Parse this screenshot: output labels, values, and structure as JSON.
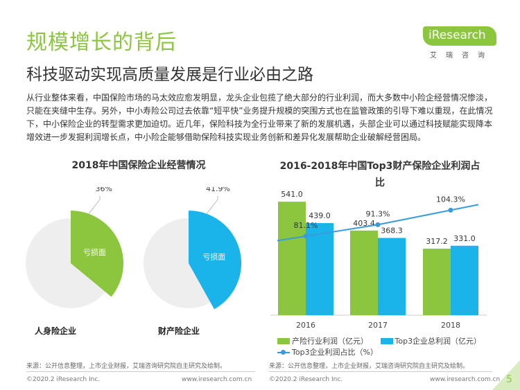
{
  "page": {
    "title": "规模增长的背后",
    "subtitle": "科技驱动实现高质量发展是行业必由之路",
    "intro": "从行业整体来看，中国保险市场的马太效应愈发明显，龙头企业包揽了绝大部分的行业利润，而大多数中小险企经营情况惨淡，只能在夹缝中生存。另外，中小寿险公司过去依靠“短平快”业务提升规模的突围方式也在监管政策的引导下难以重现，在此情况下，中小保险企业的转型需求更加迫切。近几年，保险科技为全行业带来了新的发展机遇，头部企业可以通过科技赋能实现降本增效进一步发掘利润增长点，中小险企能够借助保险科技实现业务创新和差异化发展帮助企业破解经营困局。",
    "page_number": "5"
  },
  "logo": {
    "text": "iResearch",
    "cn": "艾瑞咨询"
  },
  "colors": {
    "green": "#8cc63f",
    "blue": "#1ab4ea",
    "line": "#3a9bdc",
    "pie_bg": "#eeeeee"
  },
  "chart_data": [
    {
      "type": "pie",
      "title": "2018年中国保险企业经营情况",
      "charts": [
        {
          "name": "人身险企业",
          "slice_label": "亏损面",
          "value": 36,
          "value_label": "36%",
          "color": "#8cc63f"
        },
        {
          "name": "财产险企业",
          "slice_label": "亏损面",
          "value": 41.9,
          "value_label": "41.9%",
          "color": "#1ab4ea"
        }
      ]
    },
    {
      "type": "bar",
      "title": "2016-2018年中国Top3财产保险企业利润占比",
      "categories": [
        "2016",
        "2017",
        "2018"
      ],
      "series": [
        {
          "name": "产险行业利润（亿元）",
          "values": [
            541.0,
            403.4,
            317.2
          ],
          "labels": [
            "541.0",
            "403.4",
            "317.2"
          ],
          "color": "#8cc63f"
        },
        {
          "name": "Top3企业总利润（亿元）",
          "values": [
            439.0,
            368.3,
            331.0
          ],
          "labels": [
            "439.0",
            "368.3",
            "331.0"
          ],
          "color": "#1ab4ea"
        }
      ],
      "line_series": {
        "name": "Top3企业利润占比（%）",
        "values": [
          81.1,
          91.3,
          104.3
        ],
        "labels": [
          "81.1%",
          "91.3%",
          "104.3%"
        ],
        "color": "#3a9bdc"
      },
      "ylim": [
        0,
        700
      ],
      "line_ylim": [
        0,
        120
      ]
    }
  ],
  "sources": {
    "left": "来源：公开信息整理，上市企业财报，艾瑞咨询研究院自主研究及绘制。",
    "right": "来源：公开信息整理，上市企业财报，艾瑞咨询研究院自主研究及绘制。"
  },
  "footer": {
    "left_copyright": "©2020.2 iResearch Inc.",
    "left_url": "www.iresearch.com.cn",
    "right_copyright": "©2020.2 iResearch Inc.",
    "right_url": "www.iresearch.com.cn"
  }
}
